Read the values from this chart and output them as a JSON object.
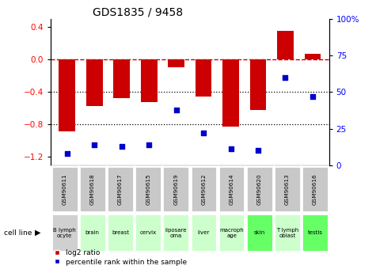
{
  "title": "GDS1835 / 9458",
  "gsm_labels": [
    "GSM90611",
    "GSM90618",
    "GSM90617",
    "GSM90615",
    "GSM90619",
    "GSM90612",
    "GSM90614",
    "GSM90620",
    "GSM90613",
    "GSM90616"
  ],
  "cell_line_texts": [
    "B lymph\nocyte",
    "brain",
    "breast",
    "cervix",
    "liposare\noma",
    "liver",
    "macroph\nage",
    "skin",
    "T lymph\noblast",
    "testis"
  ],
  "cell_line_colors": [
    "#d0d0d0",
    "#ccffcc",
    "#ccffcc",
    "#ccffcc",
    "#ccffcc",
    "#ccffcc",
    "#ccffcc",
    "#66ff66",
    "#ccffcc",
    "#66ff66"
  ],
  "log2_ratio": [
    -0.88,
    -0.57,
    -0.47,
    -0.52,
    -0.09,
    -0.45,
    -0.82,
    -0.62,
    0.36,
    0.07
  ],
  "percentile_rank": [
    8,
    14,
    13,
    14,
    38,
    22,
    11,
    10,
    60,
    47
  ],
  "bar_color": "#cc0000",
  "dot_color": "#0000cc",
  "left_ylim": [
    -1.3,
    0.5
  ],
  "right_ylim": [
    0,
    100
  ],
  "left_yticks": [
    -1.2,
    -0.8,
    -0.4,
    0.0,
    0.4
  ],
  "right_yticks": [
    0,
    25,
    50,
    75,
    100
  ],
  "right_yticklabels": [
    "0",
    "25",
    "50",
    "75",
    "100%"
  ],
  "hline_y": 0,
  "hline_color": "#cc0000",
  "dotted_lines": [
    -0.4,
    -0.8
  ],
  "dotted_color": "black",
  "gsm_box_color": "#c8c8c8",
  "legend_red_label": "log2 ratio",
  "legend_blue_label": "percentile rank within the sample"
}
